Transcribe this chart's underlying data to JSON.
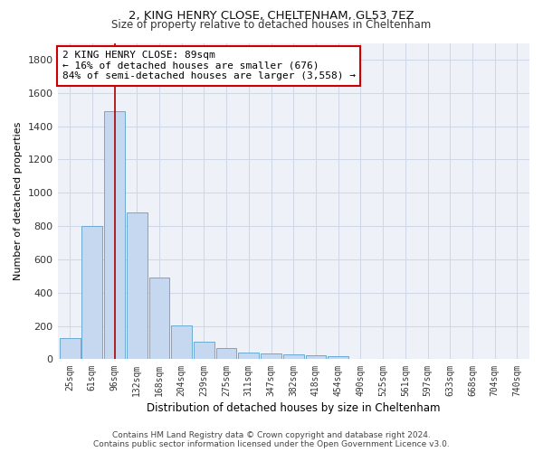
{
  "title": "2, KING HENRY CLOSE, CHELTENHAM, GL53 7EZ",
  "subtitle": "Size of property relative to detached houses in Cheltenham",
  "xlabel": "Distribution of detached houses by size in Cheltenham",
  "ylabel": "Number of detached properties",
  "categories": [
    "25sqm",
    "61sqm",
    "96sqm",
    "132sqm",
    "168sqm",
    "204sqm",
    "239sqm",
    "275sqm",
    "311sqm",
    "347sqm",
    "382sqm",
    "418sqm",
    "454sqm",
    "490sqm",
    "525sqm",
    "561sqm",
    "597sqm",
    "633sqm",
    "668sqm",
    "704sqm",
    "740sqm"
  ],
  "values": [
    125,
    800,
    1490,
    880,
    490,
    205,
    105,
    65,
    40,
    35,
    30,
    25,
    20,
    0,
    0,
    0,
    0,
    0,
    0,
    0,
    0
  ],
  "bar_color": "#c5d8f0",
  "bar_edge_color": "#6aaad4",
  "vline_x": 2.0,
  "vline_color": "#aa0000",
  "annotation_text": "2 KING HENRY CLOSE: 89sqm\n← 16% of detached houses are smaller (676)\n84% of semi-detached houses are larger (3,558) →",
  "annotation_box_color": "#ffffff",
  "annotation_box_edge": "#cc0000",
  "ylim": [
    0,
    1900
  ],
  "yticks": [
    0,
    200,
    400,
    600,
    800,
    1000,
    1200,
    1400,
    1600,
    1800
  ],
  "footer": "Contains HM Land Registry data © Crown copyright and database right 2024.\nContains public sector information licensed under the Open Government Licence v3.0.",
  "background_color": "#ffffff",
  "grid_color": "#d0d8e8",
  "title_fontsize": 9.5,
  "subtitle_fontsize": 8.5
}
